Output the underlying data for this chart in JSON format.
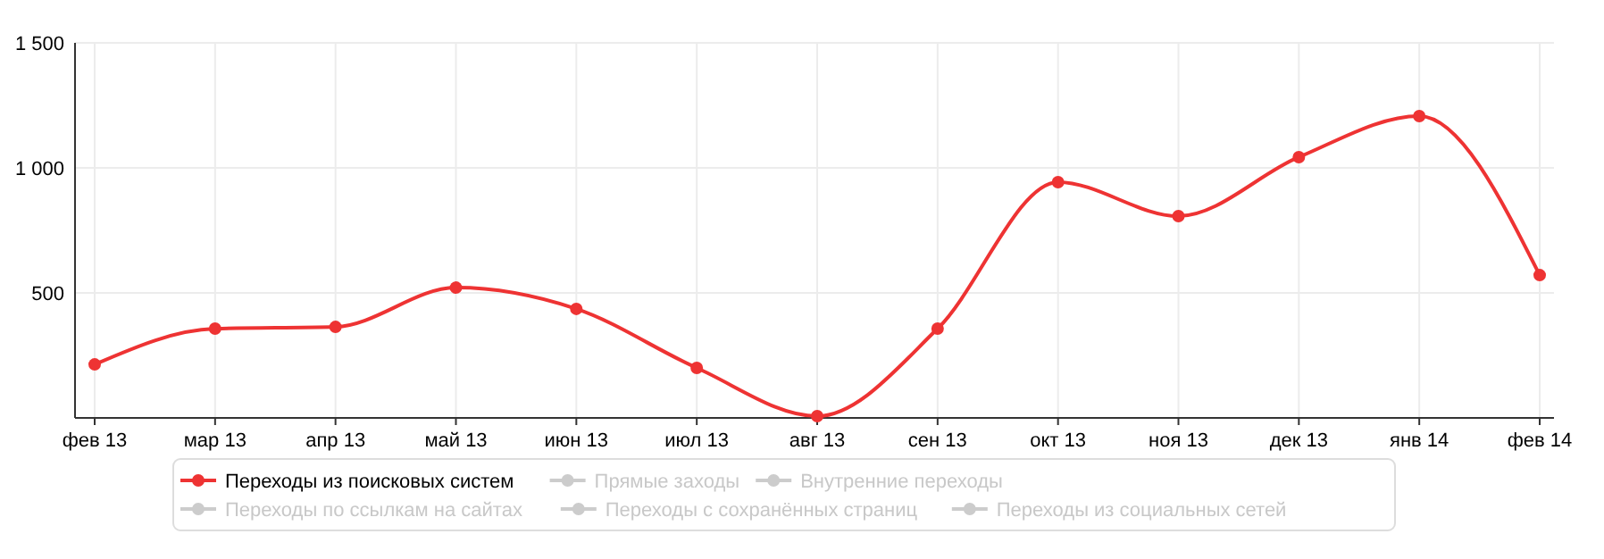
{
  "chart_data": {
    "type": "line",
    "categories": [
      "фев 13",
      "мар 13",
      "апр 13",
      "май 13",
      "июн 13",
      "июл 13",
      "авг 13",
      "сен 13",
      "окт 13",
      "ноя 13",
      "дек 13",
      "янв 14",
      "фев 14"
    ],
    "series": [
      {
        "name": "Переходы из поисковых систем",
        "color": "#ee3333",
        "values": [
          214,
          357,
          364,
          521,
          436,
          200,
          7,
          357,
          943,
          807,
          1043,
          1207,
          571
        ]
      },
      {
        "name": "Прямые заходы",
        "color": "#cccccc",
        "values": [
          null,
          null,
          null,
          null,
          null,
          null,
          null,
          null,
          null,
          null,
          null,
          null,
          null
        ]
      },
      {
        "name": "Внутренние переходы",
        "color": "#cccccc",
        "values": [
          null,
          null,
          null,
          null,
          null,
          null,
          null,
          null,
          null,
          null,
          null,
          null,
          null
        ]
      },
      {
        "name": "Переходы по ссылкам на сайтах",
        "color": "#cccccc",
        "values": [
          null,
          null,
          null,
          null,
          null,
          null,
          null,
          null,
          null,
          null,
          null,
          null,
          null
        ]
      },
      {
        "name": "Переходы с сохранённых страниц",
        "color": "#cccccc",
        "values": [
          null,
          null,
          null,
          null,
          null,
          null,
          null,
          null,
          null,
          null,
          null,
          null,
          null
        ]
      },
      {
        "name": "Переходы из социальных сетей",
        "color": "#cccccc",
        "values": [
          null,
          null,
          null,
          null,
          null,
          null,
          null,
          null,
          null,
          null,
          null,
          null,
          null
        ]
      }
    ],
    "ylim": [
      0,
      1500
    ],
    "yticks": [
      {
        "value": 500,
        "label": "500"
      },
      {
        "value": 1000,
        "label": "1 000"
      },
      {
        "value": 1500,
        "label": "1 500"
      }
    ],
    "grid": true,
    "legend": "bottom",
    "marker": "circle",
    "line_style": "solid"
  }
}
